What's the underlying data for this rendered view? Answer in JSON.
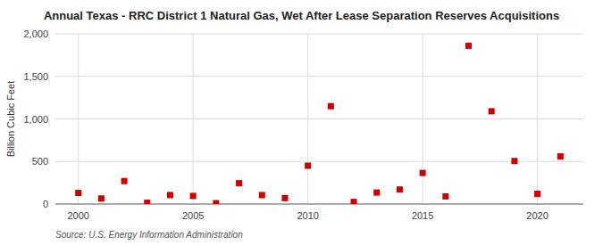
{
  "chart_data": {
    "type": "scatter",
    "title": "Annual Texas - RRC District 1 Natural Gas, Wet After Lease Separation Reserves Acquisitions",
    "y_label": "Billion Cubic Feet",
    "source": "Source: U.S. Energy Information Administration",
    "x": [
      2000,
      2001,
      2002,
      2003,
      2004,
      2005,
      2006,
      2007,
      2008,
      2009,
      2010,
      2011,
      2012,
      2013,
      2014,
      2015,
      2016,
      2017,
      2018,
      2019,
      2020,
      2021
    ],
    "values": [
      130,
      65,
      270,
      15,
      105,
      95,
      10,
      245,
      105,
      70,
      450,
      1150,
      25,
      135,
      170,
      365,
      90,
      1860,
      1090,
      505,
      120,
      560
    ],
    "color": "#cc0000",
    "marker": "square",
    "xlim": [
      1999.0,
      2022.0
    ],
    "xticks": [
      2000,
      2005,
      2010,
      2015,
      2020
    ],
    "ylim": [
      0,
      2000
    ],
    "yticks": [
      0,
      500,
      {
        "value": 1000,
        "label": "1,000"
      },
      {
        "value": 1500,
        "label": "1,500"
      },
      {
        "value": 2000,
        "label": "2,000"
      }
    ],
    "grid": true
  }
}
